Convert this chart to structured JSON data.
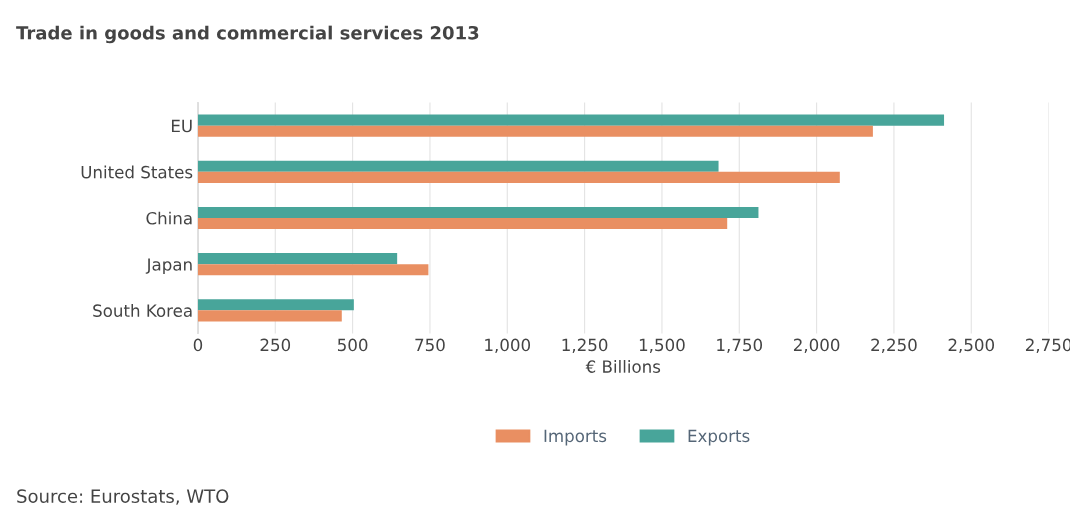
{
  "chart_data": {
    "type": "bar",
    "orientation": "horizontal",
    "title": "Trade in goods and commercial services 2013",
    "xlabel": "€ Billions",
    "categories": [
      "EU",
      "United States",
      "China",
      "Japan",
      "South Korea"
    ],
    "series": [
      {
        "name": "Exports",
        "color": "#48a59a",
        "values": [
          2412,
          1683,
          1812,
          644,
          504
        ]
      },
      {
        "name": "Imports",
        "color": "#e98f62",
        "values": [
          2182,
          2075,
          1711,
          745,
          465
        ]
      }
    ],
    "xlim": [
      0,
      2750
    ],
    "xticks": [
      0,
      250,
      500,
      750,
      {
        "value": 1000,
        "label": "1,000"
      },
      {
        "value": 1250,
        "label": "1,250"
      },
      {
        "value": 1500,
        "label": "1,500"
      },
      {
        "value": 1750,
        "label": "1,750"
      },
      {
        "value": 2000,
        "label": "2,000"
      },
      {
        "value": 2250,
        "label": "2,250"
      },
      {
        "value": 2500,
        "label": "2,500"
      },
      {
        "value": 2750,
        "label": "2,750"
      }
    ],
    "grid": "x",
    "legend": "bottom",
    "annotations": [
      "Source: Eurostats, WTO"
    ]
  }
}
